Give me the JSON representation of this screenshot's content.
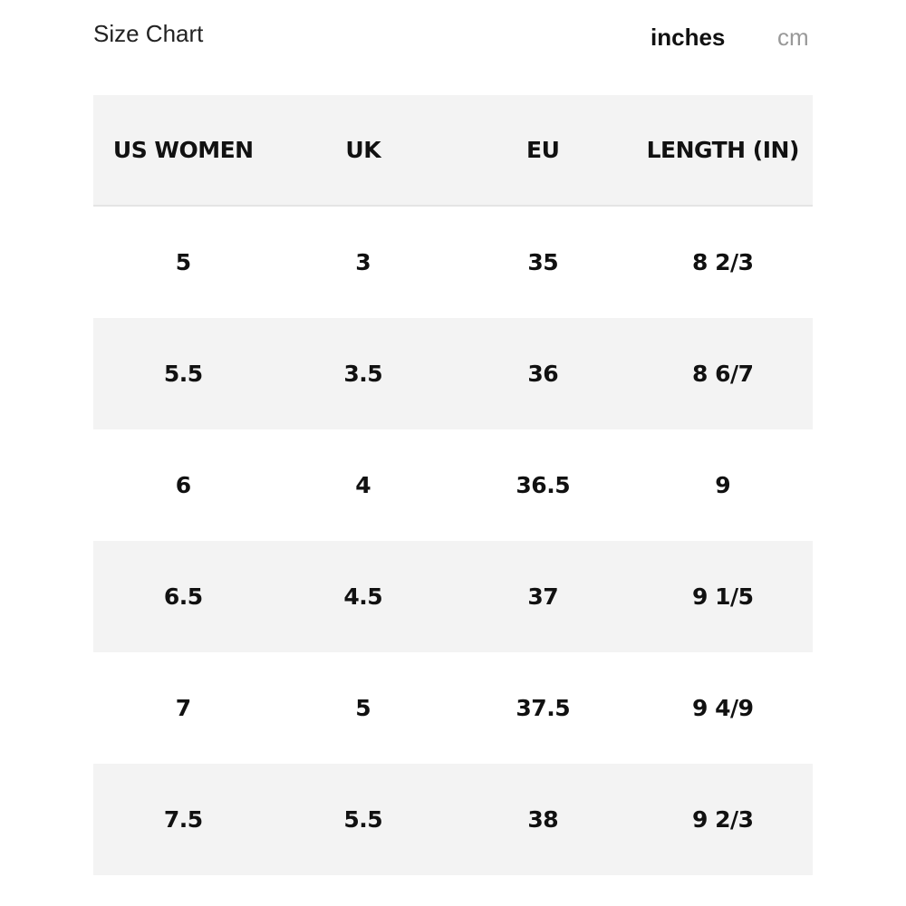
{
  "header": {
    "title": "Size Chart",
    "units": [
      "inches",
      "cm"
    ],
    "active_unit": 0
  },
  "table": {
    "columns": [
      "US WOMEN",
      "UK",
      "EU",
      "LENGTH (IN)"
    ],
    "rows": [
      [
        "5",
        "3",
        "35",
        "8 2/3"
      ],
      [
        "5.5",
        "3.5",
        "36",
        "8 6/7"
      ],
      [
        "6",
        "4",
        "36.5",
        "9"
      ],
      [
        "6.5",
        "4.5",
        "37",
        "9 1/5"
      ],
      [
        "7",
        "5",
        "37.5",
        "9 4/9"
      ],
      [
        "7.5",
        "5.5",
        "38",
        "9 2/3"
      ]
    ]
  }
}
